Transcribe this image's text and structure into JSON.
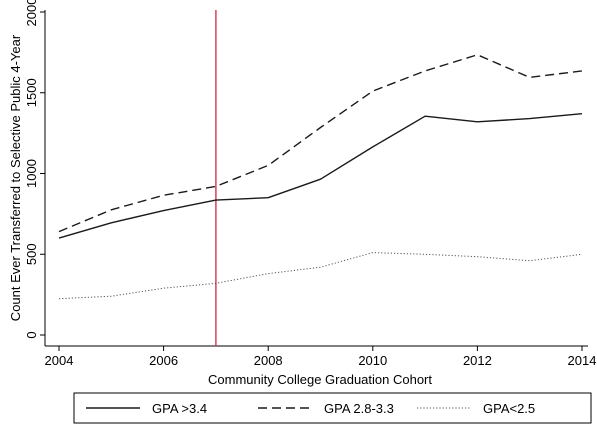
{
  "chart_data": {
    "type": "line",
    "title": "",
    "xlabel": "Community College Graduation Cohort",
    "ylabel": "Count Ever Transferred to Selective Public 4-Year",
    "xlim": [
      2004,
      2014
    ],
    "ylim": [
      0,
      2000
    ],
    "x_ticks": [
      2004,
      2006,
      2008,
      2010,
      2012,
      2014
    ],
    "y_ticks": [
      0,
      500,
      1000,
      1500,
      2000
    ],
    "x_tick_labels": [
      "2004",
      "2006",
      "2008",
      "2010",
      "2012",
      "2014"
    ],
    "y_tick_labels": [
      "0",
      "500",
      "1000",
      "1500",
      "2000"
    ],
    "grid": false,
    "vertical_reference_line": {
      "x": 2007,
      "color": "#d6335a"
    },
    "x": [
      2004,
      2005,
      2006,
      2007,
      2008,
      2009,
      2010,
      2011,
      2012,
      2013,
      2014
    ],
    "series": [
      {
        "name": "GPA >3.4",
        "style": "solid",
        "color": "#1a1a1a",
        "values": [
          600,
          695,
          770,
          835,
          850,
          965,
          1165,
          1355,
          1320,
          1340,
          1370
        ]
      },
      {
        "name": "GPA 2.8-3.3",
        "style": "dashed",
        "color": "#1a1a1a",
        "values": [
          640,
          775,
          865,
          920,
          1050,
          1285,
          1510,
          1635,
          1735,
          1595,
          1635
        ]
      },
      {
        "name": "GPA<2.5",
        "style": "dotted",
        "color": "#555555",
        "values": [
          225,
          240,
          290,
          320,
          380,
          420,
          510,
          500,
          485,
          460,
          500
        ]
      }
    ],
    "legend_position": "bottom"
  }
}
